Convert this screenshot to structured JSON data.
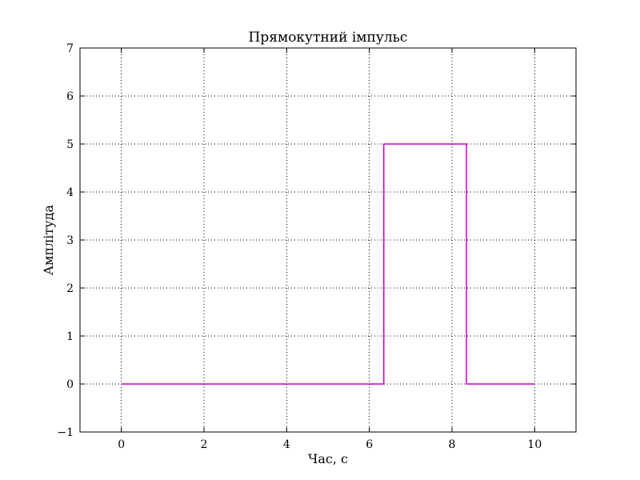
{
  "chart_data": {
    "type": "line",
    "title": "Прямокутний імпульс",
    "xlabel": "Час, с",
    "ylabel": "Амплітуда",
    "xlim": [
      -1,
      11
    ],
    "ylim": [
      -1,
      7
    ],
    "x_ticks": [
      0,
      2,
      4,
      6,
      8,
      10
    ],
    "y_ticks": [
      -1,
      0,
      1,
      2,
      3,
      4,
      5,
      6,
      7
    ],
    "x_tick_labels": [
      "0",
      "2",
      "4",
      "6",
      "8",
      "10"
    ],
    "y_tick_labels": [
      "−1",
      "0",
      "1",
      "2",
      "3",
      "4",
      "5",
      "6",
      "7"
    ],
    "grid": true,
    "series": [
      {
        "color": "#cc00cc",
        "points": [
          [
            0,
            0
          ],
          [
            6.35,
            0
          ],
          [
            6.35,
            5
          ],
          [
            8.35,
            5
          ],
          [
            8.35,
            0
          ],
          [
            10,
            0
          ]
        ]
      }
    ]
  }
}
